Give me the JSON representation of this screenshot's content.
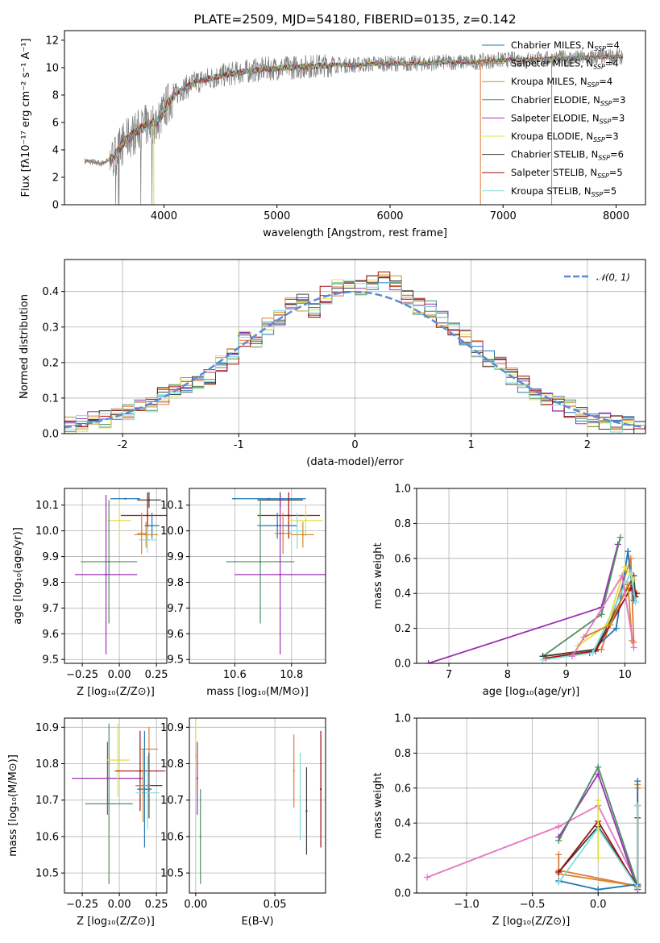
{
  "chart_data": [
    {
      "id": "spectrum",
      "type": "line",
      "title": "PLATE=2509, MJD=54180, FIBERID=0135, z=0.142",
      "xlabel": "wavelength [Angstrom, rest frame]",
      "ylabel": "Flux [fλ10⁻¹⁷ erg cm⁻² s⁻¹ A⁻¹]",
      "xlim": [
        3120,
        8260
      ],
      "ylim": [
        0,
        12.7
      ],
      "xticks": [
        4000,
        5000,
        6000,
        7000,
        8000
      ],
      "yticks": [
        0,
        2,
        4,
        6,
        8,
        10,
        12
      ],
      "grid": false,
      "legend_position": "top-right",
      "data_color": "#808080",
      "continuum_x": [
        3300,
        3450,
        3550,
        3650,
        3750,
        3850,
        3950,
        4050,
        4150,
        4300,
        4500,
        4700,
        4900,
        5100,
        5300,
        5500,
        5700,
        5900,
        6100,
        6300,
        6500,
        6700,
        6900,
        7100,
        7300,
        7500,
        7700,
        7900,
        8060
      ],
      "continuum_y": [
        3.2,
        3.0,
        3.4,
        4.6,
        5.3,
        5.8,
        6.1,
        7.6,
        8.4,
        9.0,
        9.4,
        9.7,
        9.9,
        10.0,
        10.1,
        10.2,
        10.2,
        10.3,
        10.3,
        10.3,
        10.4,
        10.4,
        10.5,
        10.6,
        10.6,
        10.7,
        10.7,
        10.8,
        10.8
      ],
      "series": [
        {
          "name": "Chabrier MILES, N_SSP=4",
          "label_prefix": "Chabrier MILES, N",
          "label_sub": "SSP",
          "label_suffix": "=4",
          "color": "#1f77b4"
        },
        {
          "name": "Salpeter MILES, N_SSP=4",
          "label_prefix": "Salpeter MILES, N",
          "label_sub": "SSP",
          "label_suffix": "=4",
          "color": "#e07b39"
        },
        {
          "name": "Kroupa MILES, N_SSP=4",
          "label_prefix": "Kroupa MILES, N",
          "label_sub": "SSP",
          "label_suffix": "=4",
          "color": "#d4872a"
        },
        {
          "name": "Chabrier ELODIE, N_SSP=3",
          "label_prefix": "Chabrier ELODIE, N",
          "label_sub": "SSP",
          "label_suffix": "=3",
          "color": "#4f8f5f"
        },
        {
          "name": "Salpeter ELODIE, N_SSP=3",
          "label_prefix": "Salpeter ELODIE, N",
          "label_sub": "SSP",
          "label_suffix": "=3",
          "color": "#9b30b5"
        },
        {
          "name": "Kroupa ELODIE, N_SSP=3",
          "label_prefix": "Kroupa ELODIE, N",
          "label_sub": "SSP",
          "label_suffix": "=3",
          "color": "#e0e040"
        },
        {
          "name": "Chabrier STELIB, N_SSP=6",
          "label_prefix": "Chabrier STELIB, N",
          "label_sub": "SSP",
          "label_suffix": "=6",
          "color": "#404040"
        },
        {
          "name": "Salpeter STELIB, N_SSP=5",
          "label_prefix": "Salpeter STELIB, N",
          "label_sub": "SSP",
          "label_suffix": "=5",
          "color": "#a01010"
        },
        {
          "name": "Kroupa STELIB, N_SSP=5",
          "label_prefix": "Kroupa STELIB, N",
          "label_sub": "SSP",
          "label_suffix": "=5",
          "color": "#80dede"
        }
      ]
    },
    {
      "id": "residuals",
      "type": "line",
      "xlabel": "(data-model)/error",
      "ylabel": "Normed distribution",
      "xlim": [
        -2.5,
        2.5
      ],
      "ylim": [
        0,
        0.49
      ],
      "xticks": [
        -2,
        -1,
        0,
        1,
        2
      ],
      "yticks": [
        0.0,
        0.1,
        0.2,
        0.3,
        0.4
      ],
      "grid": true,
      "legend_position": "top-right",
      "legend_label": "𝒩(0, 1)",
      "gaussian_color": "#5b8ad6",
      "hist_bin_width": 0.1,
      "hist_centers": [
        -2.45,
        -2.35,
        -2.25,
        -2.15,
        -2.05,
        -1.95,
        -1.85,
        -1.75,
        -1.65,
        -1.55,
        -1.45,
        -1.35,
        -1.25,
        -1.15,
        -1.05,
        -0.95,
        -0.85,
        -0.75,
        -0.65,
        -0.55,
        -0.45,
        -0.35,
        -0.25,
        -0.15,
        -0.05,
        0.05,
        0.15,
        0.25,
        0.35,
        0.45,
        0.55,
        0.65,
        0.75,
        0.85,
        0.95,
        1.05,
        1.15,
        1.25,
        1.35,
        1.45,
        1.55,
        1.65,
        1.75,
        1.85,
        1.95,
        2.05,
        2.15,
        2.25,
        2.35,
        2.45
      ],
      "hist_mean": [
        0.026,
        0.031,
        0.044,
        0.041,
        0.047,
        0.06,
        0.072,
        0.082,
        0.107,
        0.121,
        0.135,
        0.146,
        0.163,
        0.199,
        0.22,
        0.266,
        0.25,
        0.3,
        0.323,
        0.366,
        0.37,
        0.352,
        0.39,
        0.41,
        0.41,
        0.415,
        0.43,
        0.44,
        0.42,
        0.39,
        0.36,
        0.35,
        0.32,
        0.29,
        0.27,
        0.24,
        0.21,
        0.19,
        0.16,
        0.14,
        0.115,
        0.097,
        0.082,
        0.07,
        0.052,
        0.04,
        0.034,
        0.026,
        0.023,
        0.02
      ]
    },
    {
      "id": "age-vs-z",
      "type": "scatter",
      "xlabel": "Z [log₁₀(Z/Z⊙)]",
      "ylabel": "age  [log₁₀(age/yr)]",
      "xlim": [
        -0.37,
        0.32
      ],
      "ylim": [
        9.485,
        10.165
      ],
      "xticks": [
        -0.25,
        0.0,
        0.25
      ],
      "xtick_labels": [
        "−0.25",
        "0.00",
        "0.25"
      ],
      "yticks": [
        9.5,
        9.6,
        9.7,
        9.8,
        9.9,
        10.0,
        10.1
      ],
      "grid": true,
      "points": [
        {
          "x": 0.04,
          "y": 10.125,
          "xerr": 0.1,
          "yerr": 0.0,
          "series": 0
        },
        {
          "x": 0.2,
          "y": 10.12,
          "xerr": 0.08,
          "yerr": 0.03,
          "series": 6
        },
        {
          "x": 0.19,
          "y": 10.06,
          "xerr": 0.18,
          "yerr": 0.09,
          "series": 7
        },
        {
          "x": 0.0,
          "y": 10.04,
          "xerr": 0.08,
          "yerr": 0.08,
          "series": 5
        },
        {
          "x": 0.22,
          "y": 10.02,
          "xerr": 0.05,
          "yerr": 0.05,
          "series": 0
        },
        {
          "x": 0.15,
          "y": 9.99,
          "xerr": 0.03,
          "yerr": 0.08,
          "series": 1
        },
        {
          "x": 0.18,
          "y": 9.985,
          "xerr": 0.08,
          "yerr": 0.05,
          "series": 2
        },
        {
          "x": 0.19,
          "y": 9.965,
          "xerr": 0.06,
          "yerr": 0.05,
          "series": 8
        },
        {
          "x": -0.07,
          "y": 9.88,
          "xerr": 0.19,
          "yerr": 0.24,
          "series": 3
        },
        {
          "x": -0.09,
          "y": 9.83,
          "xerr": 0.21,
          "yerr": 0.31,
          "series": 4
        }
      ]
    },
    {
      "id": "age-vs-mass",
      "type": "scatter",
      "xlabel": "mass [log₁₀(M/M⊙)]",
      "ylabel": "",
      "xlim": [
        10.44,
        10.92
      ],
      "ylim": [
        9.485,
        10.165
      ],
      "xticks": [
        10.6,
        10.8
      ],
      "yticks": [
        9.5,
        9.6,
        9.7,
        9.8,
        9.9,
        10.0,
        10.1
      ],
      "grid": true,
      "points": [
        {
          "x": 10.72,
          "y": 10.125,
          "xerr": 0.13,
          "yerr": 0.0,
          "series": 0
        },
        {
          "x": 10.76,
          "y": 10.12,
          "xerr": 0.08,
          "yerr": 0.03,
          "series": 6
        },
        {
          "x": 10.79,
          "y": 10.06,
          "xerr": 0.11,
          "yerr": 0.09,
          "series": 7
        },
        {
          "x": 10.85,
          "y": 10.04,
          "xerr": 0.06,
          "yerr": 0.06,
          "series": 5
        },
        {
          "x": 10.75,
          "y": 10.02,
          "xerr": 0.07,
          "yerr": 0.05,
          "series": 0
        },
        {
          "x": 10.82,
          "y": 10.0,
          "xerr": 0.03,
          "yerr": 0.07,
          "series": 8
        },
        {
          "x": 10.77,
          "y": 9.99,
          "xerr": 0.03,
          "yerr": 0.08,
          "series": 1
        },
        {
          "x": 10.84,
          "y": 9.985,
          "xerr": 0.04,
          "yerr": 0.05,
          "series": 2
        },
        {
          "x": 10.69,
          "y": 9.88,
          "xerr": 0.12,
          "yerr": 0.24,
          "series": 3
        },
        {
          "x": 10.76,
          "y": 9.83,
          "xerr": 0.16,
          "yerr": 0.31,
          "series": 4
        }
      ]
    },
    {
      "id": "mass-weight-vs-age",
      "type": "line",
      "xlabel": "age  [log₁₀(age/yr)]",
      "ylabel": "mass weight",
      "xlim": [
        6.45,
        10.35
      ],
      "ylim": [
        0.0,
        1.0
      ],
      "xticks": [
        7,
        8,
        9,
        10
      ],
      "yticks": [
        0.0,
        0.2,
        0.4,
        0.6,
        0.8,
        1.0
      ],
      "grid": true,
      "series": [
        {
          "color_index": 4,
          "x": [
            6.65,
            9.6,
            9.88
          ],
          "y": [
            0.0,
            0.32,
            0.68
          ]
        },
        {
          "color_index": 3,
          "x": [
            8.6,
            9.6,
            9.92
          ],
          "y": [
            0.04,
            0.28,
            0.72
          ]
        },
        {
          "color_index": 1,
          "x": [
            8.6,
            9.6,
            10.1,
            10.15
          ],
          "y": [
            0.04,
            0.08,
            0.6,
            0.12
          ]
        },
        {
          "color_index": 0,
          "x": [
            9.4,
            9.85,
            10.05,
            10.15
          ],
          "y": [
            0.06,
            0.2,
            0.64,
            0.36
          ]
        },
        {
          "color_index": 6,
          "x": [
            8.6,
            9.5,
            10.15,
            10.18
          ],
          "y": [
            0.04,
            0.08,
            0.5,
            0.38
          ]
        },
        {
          "color_index": 7,
          "x": [
            8.65,
            9.5,
            10.1,
            10.2
          ],
          "y": [
            0.03,
            0.07,
            0.43,
            0.4
          ]
        },
        {
          "color_index": 8,
          "x": [
            8.6,
            9.45,
            10.1,
            10.18
          ],
          "y": [
            0.02,
            0.06,
            0.52,
            0.35
          ]
        },
        {
          "color_index": 5,
          "x": [
            9.2,
            9.7,
            10.0,
            10.15
          ],
          "y": [
            0.1,
            0.22,
            0.55,
            0.48
          ]
        },
        {
          "color_index": 2,
          "x": [
            9.3,
            9.75,
            10.05,
            10.12
          ],
          "y": [
            0.15,
            0.22,
            0.45,
            0.13
          ]
        },
        {
          "color_index": 4,
          "x": [
            9.1,
            9.95,
            10.15
          ],
          "y": [
            0.04,
            0.5,
            0.09
          ],
          "alt_color": "#e377c2"
        }
      ]
    },
    {
      "id": "mass-vs-z",
      "type": "scatter",
      "xlabel": "Z [log₁₀(Z/Z⊙)]",
      "ylabel": "mass [log₁₀(M/M⊙)]",
      "xlim": [
        -0.37,
        0.32
      ],
      "ylim": [
        10.445,
        10.925
      ],
      "xticks": [
        -0.25,
        0.0,
        0.25
      ],
      "xtick_labels": [
        "−0.25",
        "0.00",
        "0.25"
      ],
      "yticks": [
        10.5,
        10.6,
        10.7,
        10.8,
        10.9
      ],
      "grid": true,
      "points": [
        {
          "x": -0.08,
          "y": 10.76,
          "xerr": 0.24,
          "yerr": 0.1,
          "series": 4
        },
        {
          "x": -0.07,
          "y": 10.69,
          "xerr": 0.16,
          "yerr": 0.22,
          "series": 3
        },
        {
          "x": -0.01,
          "y": 10.81,
          "xerr": 0.08,
          "yerr": 0.1,
          "series": 5
        },
        {
          "x": 0.14,
          "y": 10.78,
          "xerr": 0.17,
          "yerr": 0.11,
          "series": 7
        },
        {
          "x": 0.2,
          "y": 10.84,
          "xerr": 0.06,
          "yerr": 0.06,
          "series": 1
        },
        {
          "x": 0.2,
          "y": 10.74,
          "xerr": 0.09,
          "yerr": 0.09,
          "series": 6
        },
        {
          "x": 0.19,
          "y": 10.72,
          "xerr": 0.08,
          "yerr": 0.1,
          "series": 8
        },
        {
          "x": 0.17,
          "y": 10.73,
          "xerr": 0.05,
          "yerr": 0.16,
          "series": 0
        },
        {
          "x": 0.16,
          "y": 10.74,
          "xerr": 0.05,
          "yerr": 0.1,
          "series": 2
        }
      ]
    },
    {
      "id": "mass-vs-ebv",
      "type": "scatter",
      "xlabel": "E(B-V)",
      "ylabel": "",
      "xlim": [
        -0.004,
        0.082
      ],
      "ylim": [
        10.445,
        10.925
      ],
      "xticks": [
        0.0,
        0.05
      ],
      "xtick_labels": [
        "0.00",
        "0.05"
      ],
      "yticks": [
        10.5,
        10.6,
        10.7,
        10.8,
        10.9
      ],
      "grid": true,
      "points": [
        {
          "x": 0.0,
          "y": 10.82,
          "xerr": 0,
          "yerr": 0.1,
          "series": 5
        },
        {
          "x": 0.001,
          "y": 10.76,
          "xerr": 0,
          "yerr": 0.1,
          "series": 4
        },
        {
          "x": 0.003,
          "y": 10.6,
          "xerr": 0,
          "yerr": 0.13,
          "series": 3
        },
        {
          "x": 0.062,
          "y": 10.78,
          "xerr": 0,
          "yerr": 0.1,
          "series": 1
        },
        {
          "x": 0.066,
          "y": 10.71,
          "xerr": 0,
          "yerr": 0.12,
          "series": 8
        },
        {
          "x": 0.07,
          "y": 10.67,
          "xerr": 0,
          "yerr": 0.12,
          "series": 6
        },
        {
          "x": 0.079,
          "y": 10.73,
          "xerr": 0,
          "yerr": 0.16,
          "series": 7
        }
      ]
    },
    {
      "id": "mass-weight-vs-z",
      "type": "line",
      "xlabel": "Z [log₁₀(Z/Z⊙)]",
      "ylabel": "mass weight",
      "xlim": [
        -1.38,
        0.36
      ],
      "ylim": [
        0.0,
        1.0
      ],
      "xticks": [
        -1.0,
        -0.5,
        0.0
      ],
      "xtick_labels": [
        "−1.0",
        "−0.5",
        "0.0"
      ],
      "yticks": [
        0.0,
        0.2,
        0.4,
        0.6,
        0.8,
        1.0
      ],
      "grid": true,
      "series": [
        {
          "color_index": 4,
          "x": [
            -1.3,
            -0.3,
            0.0,
            0.3
          ],
          "y": [
            0.09,
            0.38,
            0.5,
            0.05
          ],
          "alt_color": "#e377c2"
        },
        {
          "color_index": 4,
          "x": [
            -0.3,
            0.0,
            0.3
          ],
          "y": [
            0.32,
            0.68,
            0.02
          ]
        },
        {
          "color_index": 3,
          "x": [
            -0.3,
            0.0,
            0.3
          ],
          "y": [
            0.3,
            0.72,
            0.04
          ]
        },
        {
          "color_index": 1,
          "x": [
            -0.3,
            -0.3,
            0.3,
            0.3
          ],
          "y": [
            0.22,
            0.13,
            0.04,
            0.6
          ]
        },
        {
          "color_index": 2,
          "x": [
            -0.3,
            0.3,
            0.3
          ],
          "y": [
            0.11,
            0.04,
            0.62
          ]
        },
        {
          "color_index": 0,
          "x": [
            -0.3,
            0.0,
            0.3,
            0.3
          ],
          "y": [
            0.07,
            0.02,
            0.05,
            0.64
          ]
        },
        {
          "color_index": 6,
          "x": [
            -0.3,
            0.0,
            0.3,
            0.3
          ],
          "y": [
            0.12,
            0.38,
            0.04,
            0.5
          ]
        },
        {
          "color_index": 7,
          "x": [
            -0.3,
            0.0,
            0.3,
            0.3
          ],
          "y": [
            0.12,
            0.41,
            0.03,
            0.43
          ]
        },
        {
          "color_index": 8,
          "x": [
            -0.3,
            0.0,
            0.3,
            0.3
          ],
          "y": [
            0.06,
            0.37,
            0.03,
            0.5
          ]
        },
        {
          "color_index": 5,
          "x": [
            0.0,
            0.0
          ],
          "y": [
            0.2,
            0.53
          ]
        }
      ]
    }
  ]
}
